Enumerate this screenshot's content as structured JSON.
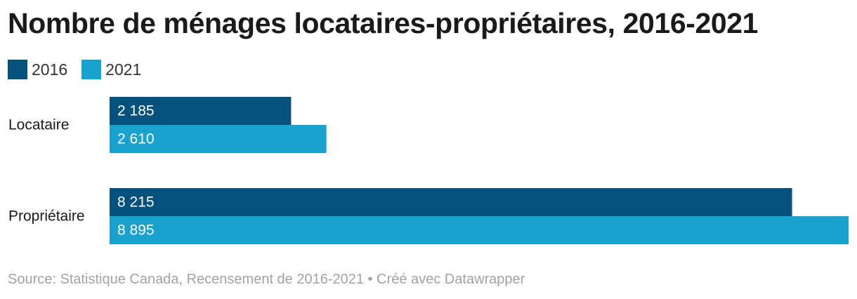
{
  "title": "Nombre de ménages locataires-propriétaires, 2016-2021",
  "legend": [
    {
      "label": "2016",
      "color": "#03517c"
    },
    {
      "label": "2021",
      "color": "#19a1d0"
    }
  ],
  "chart_data": {
    "type": "bar",
    "orientation": "horizontal",
    "categories": [
      "Locataire",
      "Propriétaire"
    ],
    "series": [
      {
        "name": "2016",
        "values": [
          2185,
          8215
        ],
        "labels": [
          "2 185",
          "8 215"
        ],
        "color": "#03517c"
      },
      {
        "name": "2021",
        "values": [
          2610,
          8895
        ],
        "labels": [
          "2 610",
          "8 895"
        ],
        "color": "#19a1d0"
      }
    ],
    "title": "Nombre de ménages locataires-propriétaires, 2016-2021",
    "xlabel": "",
    "ylabel": "",
    "xlim": [
      0,
      8895
    ],
    "grid": false,
    "legend_position": "top-left"
  },
  "footer": {
    "source": "Source: Statistique Canada, Recensement de 2016-2021 • Créé avec Datawrapper"
  }
}
